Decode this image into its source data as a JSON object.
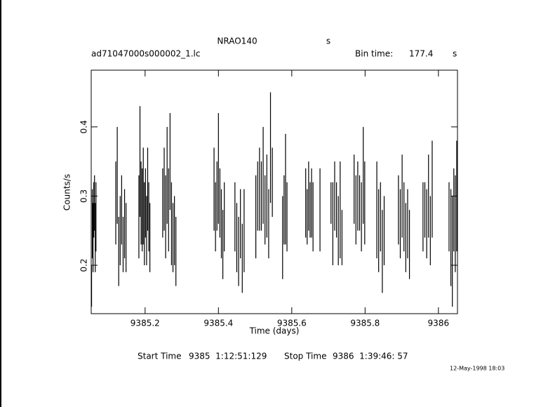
{
  "chart_data": {
    "type": "errorbar",
    "title": "NRAO140",
    "title_unit": "s",
    "file_name": "ad71047000s000002_1.lc",
    "bin_time_label": "Bin time:",
    "bin_time": "177.4",
    "bin_time_unit": "s",
    "xlabel": "Time (days)",
    "ylabel": "Counts/s",
    "start_time_label": "Start Time",
    "start_time": "9385  1:12:51:129",
    "stop_time_label": "Stop Time",
    "stop_time": "9386  1:39:46: 57",
    "date_stamp": "12-May-1998 18:03",
    "xlim": [
      9385.053,
      9386.052
    ],
    "ylim": [
      0.13,
      0.482
    ],
    "xticks": [
      9385.2,
      9385.4,
      9385.6,
      9385.8,
      9386
    ],
    "yticks": [
      0.2,
      0.3,
      0.4
    ],
    "color": "#000000",
    "x": [
      9385.054,
      9385.056,
      9385.058,
      9385.06,
      9385.062,
      9385.064,
      9385.066,
      9385.12,
      9385.124,
      9385.128,
      9385.132,
      9385.136,
      9385.14,
      9385.144,
      9385.148,
      9385.183,
      9385.186,
      9385.189,
      9385.192,
      9385.195,
      9385.198,
      9385.201,
      9385.204,
      9385.207,
      9385.21,
      9385.213,
      9385.248,
      9385.252,
      9385.256,
      9385.26,
      9385.264,
      9385.268,
      9385.272,
      9385.276,
      9385.28,
      9385.284,
      9385.388,
      9385.392,
      9385.396,
      9385.4,
      9385.404,
      9385.408,
      9385.412,
      9385.416,
      9385.445,
      9385.45,
      9385.455,
      9385.46,
      9385.465,
      9385.47,
      9385.502,
      9385.507,
      9385.512,
      9385.517,
      9385.522,
      9385.527,
      9385.532,
      9385.537,
      9385.542,
      9385.547,
      9385.575,
      9385.579,
      9385.583,
      9385.587,
      9385.638,
      9385.642,
      9385.646,
      9385.65,
      9385.654,
      9385.658,
      9385.677,
      9385.707,
      9385.712,
      9385.717,
      9385.722,
      9385.727,
      9385.732,
      9385.737,
      9385.77,
      9385.775,
      9385.78,
      9385.785,
      9385.79,
      9385.795,
      9385.799,
      9385.832,
      9385.837,
      9385.842,
      9385.847,
      9385.852,
      9385.891,
      9385.896,
      9385.901,
      9385.906,
      9385.911,
      9385.916,
      9385.921,
      9385.958,
      9385.963,
      9385.968,
      9385.973,
      9385.978,
      9385.983,
      9386.029,
      9386.034,
      9386.038,
      9386.042,
      9386.046,
      9386.05
    ],
    "values": [
      0.17,
      0.26,
      0.24,
      0.28,
      0.29,
      0.24,
      0.27,
      0.29,
      0.33,
      0.22,
      0.25,
      0.28,
      0.23,
      0.26,
      0.24,
      0.27,
      0.35,
      0.29,
      0.28,
      0.3,
      0.26,
      0.29,
      0.25,
      0.31,
      0.27,
      0.24,
      0.29,
      0.31,
      0.27,
      0.33,
      0.28,
      0.35,
      0.26,
      0.24,
      0.25,
      0.22,
      0.31,
      0.27,
      0.3,
      0.34,
      0.29,
      0.26,
      0.23,
      0.27,
      0.27,
      0.24,
      0.22,
      0.26,
      0.21,
      0.25,
      0.27,
      0.3,
      0.31,
      0.3,
      0.33,
      0.28,
      0.3,
      0.26,
      0.37,
      0.32,
      0.24,
      0.28,
      0.31,
      0.27,
      0.29,
      0.27,
      0.3,
      0.28,
      0.29,
      0.27,
      0.28,
      0.29,
      0.26,
      0.3,
      0.28,
      0.25,
      0.28,
      0.24,
      0.31,
      0.28,
      0.3,
      0.29,
      0.27,
      0.33,
      0.29,
      0.28,
      0.25,
      0.27,
      0.22,
      0.25,
      0.28,
      0.26,
      0.3,
      0.27,
      0.24,
      0.26,
      0.23,
      0.27,
      0.28,
      0.26,
      0.3,
      0.25,
      0.31,
      0.27,
      0.24,
      0.22,
      0.28,
      0.26,
      0.3
    ],
    "errors": [
      0.03,
      0.05,
      0.05,
      0.04,
      0.04,
      0.05,
      0.05,
      0.06,
      0.07,
      0.05,
      0.05,
      0.05,
      0.04,
      0.05,
      0.05,
      0.06,
      0.08,
      0.06,
      0.06,
      0.07,
      0.06,
      0.05,
      0.05,
      0.06,
      0.05,
      0.05,
      0.05,
      0.06,
      0.06,
      0.07,
      0.06,
      0.07,
      0.06,
      0.05,
      0.05,
      0.05,
      0.06,
      0.05,
      0.05,
      0.08,
      0.05,
      0.05,
      0.05,
      0.05,
      0.05,
      0.05,
      0.05,
      0.05,
      0.05,
      0.06,
      0.06,
      0.05,
      0.06,
      0.05,
      0.07,
      0.05,
      0.06,
      0.05,
      0.08,
      0.05,
      0.06,
      0.05,
      0.08,
      0.05,
      0.05,
      0.04,
      0.05,
      0.04,
      0.05,
      0.05,
      0.06,
      0.03,
      0.06,
      0.05,
      0.04,
      0.05,
      0.07,
      0.04,
      0.05,
      0.05,
      0.05,
      0.04,
      0.05,
      0.07,
      0.06,
      0.07,
      0.06,
      0.05,
      0.06,
      0.05,
      0.05,
      0.05,
      0.06,
      0.05,
      0.05,
      0.05,
      0.05,
      0.05,
      0.04,
      0.05,
      0.06,
      0.05,
      0.07,
      0.05,
      0.07,
      0.08,
      0.06,
      0.07,
      0.08
    ]
  }
}
